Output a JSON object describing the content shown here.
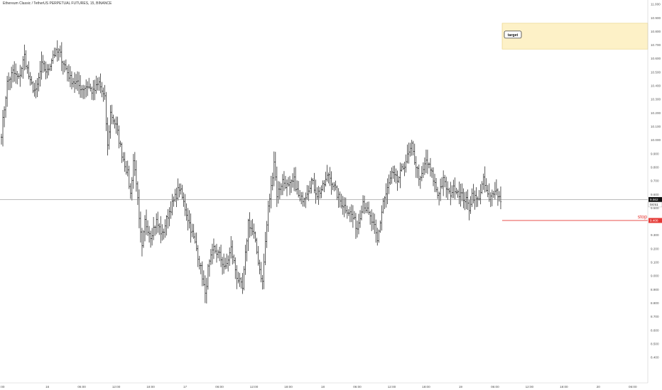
{
  "header": {
    "title": "Ethereum Classic / TetherUS PERPETUAL FUTURES, 15, BINANCE"
  },
  "colors": {
    "bars": "#111111",
    "stop_line": "#e53935",
    "target_fill": "#fdf1c7",
    "target_border": "#e8cf7a",
    "price_line": "#777777",
    "axis_text": "#555555",
    "axis_border": "#cccccc"
  },
  "chart_data": {
    "type": "ohlc",
    "y_axis": {
      "range": [
        8.35,
        11.02
      ],
      "ticks": [
        "11.000",
        "10.900",
        "10.800",
        "10.700",
        "10.600",
        "10.500",
        "10.400",
        "10.300",
        "10.200",
        "10.100",
        "10.000",
        "9.900",
        "9.800",
        "9.700",
        "9.600",
        "9.500",
        "9.400",
        "9.300",
        "9.200",
        "9.100",
        "9.000",
        "8.900",
        "8.800",
        "8.700",
        "8.600",
        "8.500",
        "8.400"
      ]
    },
    "x_axis": {
      "ticks": [
        {
          "label": "0:00",
          "bar": 0
        },
        {
          "label": "16",
          "bar": 32
        },
        {
          "label": "06:00",
          "bar": 56
        },
        {
          "label": "12:00",
          "bar": 80
        },
        {
          "label": "18:00",
          "bar": 104
        },
        {
          "label": "17",
          "bar": 128
        },
        {
          "label": "06:00",
          "bar": 152
        },
        {
          "label": "12:00",
          "bar": 176
        },
        {
          "label": "18:00",
          "bar": 200
        },
        {
          "label": "18",
          "bar": 224
        },
        {
          "label": "06:00",
          "bar": 248
        },
        {
          "label": "12:00",
          "bar": 272
        },
        {
          "label": "18:00",
          "bar": 296
        },
        {
          "label": "19",
          "bar": 320
        },
        {
          "label": "06:00",
          "bar": 344
        },
        {
          "label": "12:00",
          "bar": 368
        },
        {
          "label": "18:00",
          "bar": 392
        },
        {
          "label": "20",
          "bar": 416
        },
        {
          "label": "06:00",
          "bar": 440
        },
        {
          "label": "12:00",
          "bar": 464
        }
      ]
    },
    "anchors": [
      [
        0,
        10.05
      ],
      [
        4,
        10.42
      ],
      [
        8,
        10.5
      ],
      [
        12,
        10.45
      ],
      [
        16,
        10.62
      ],
      [
        20,
        10.42
      ],
      [
        24,
        10.35
      ],
      [
        28,
        10.55
      ],
      [
        32,
        10.5
      ],
      [
        36,
        10.63
      ],
      [
        40,
        10.65
      ],
      [
        44,
        10.55
      ],
      [
        48,
        10.45
      ],
      [
        52,
        10.42
      ],
      [
        56,
        10.38
      ],
      [
        60,
        10.4
      ],
      [
        64,
        10.35
      ],
      [
        68,
        10.42
      ],
      [
        72,
        10.3
      ],
      [
        74,
        9.95
      ],
      [
        76,
        10.2
      ],
      [
        80,
        10.1
      ],
      [
        84,
        9.9
      ],
      [
        88,
        9.75
      ],
      [
        90,
        9.6
      ],
      [
        92,
        9.85
      ],
      [
        94,
        9.7
      ],
      [
        96,
        9.4
      ],
      [
        98,
        9.2
      ],
      [
        100,
        9.4
      ],
      [
        104,
        9.3
      ],
      [
        108,
        9.4
      ],
      [
        112,
        9.3
      ],
      [
        116,
        9.45
      ],
      [
        120,
        9.55
      ],
      [
        124,
        9.65
      ],
      [
        128,
        9.5
      ],
      [
        132,
        9.35
      ],
      [
        136,
        9.2
      ],
      [
        140,
        9.0
      ],
      [
        142,
        8.85
      ],
      [
        144,
        9.05
      ],
      [
        148,
        9.2
      ],
      [
        152,
        9.15
      ],
      [
        156,
        9.05
      ],
      [
        160,
        9.2
      ],
      [
        164,
        9.0
      ],
      [
        168,
        8.9
      ],
      [
        170,
        9.15
      ],
      [
        172,
        9.4
      ],
      [
        176,
        9.3
      ],
      [
        180,
        9.05
      ],
      [
        182,
        8.95
      ],
      [
        184,
        9.25
      ],
      [
        186,
        9.5
      ],
      [
        188,
        9.65
      ],
      [
        190,
        9.85
      ],
      [
        192,
        9.6
      ],
      [
        196,
        9.7
      ],
      [
        200,
        9.65
      ],
      [
        204,
        9.7
      ],
      [
        208,
        9.55
      ],
      [
        212,
        9.6
      ],
      [
        216,
        9.7
      ],
      [
        220,
        9.6
      ],
      [
        224,
        9.65
      ],
      [
        228,
        9.75
      ],
      [
        232,
        9.65
      ],
      [
        236,
        9.55
      ],
      [
        240,
        9.5
      ],
      [
        244,
        9.45
      ],
      [
        248,
        9.35
      ],
      [
        252,
        9.55
      ],
      [
        256,
        9.45
      ],
      [
        260,
        9.35
      ],
      [
        262,
        9.25
      ],
      [
        264,
        9.4
      ],
      [
        266,
        9.55
      ],
      [
        268,
        9.6
      ],
      [
        272,
        9.75
      ],
      [
        276,
        9.7
      ],
      [
        280,
        9.8
      ],
      [
        284,
        9.9
      ],
      [
        286,
        9.95
      ],
      [
        288,
        9.85
      ],
      [
        292,
        9.7
      ],
      [
        296,
        9.85
      ],
      [
        300,
        9.75
      ],
      [
        304,
        9.6
      ],
      [
        308,
        9.7
      ],
      [
        312,
        9.6
      ],
      [
        316,
        9.65
      ],
      [
        320,
        9.6
      ],
      [
        324,
        9.55
      ],
      [
        326,
        9.5
      ],
      [
        328,
        9.6
      ],
      [
        332,
        9.55
      ],
      [
        336,
        9.7
      ],
      [
        340,
        9.55
      ],
      [
        344,
        9.65
      ],
      [
        346,
        9.6
      ],
      [
        348,
        9.56
      ]
    ],
    "current_price": {
      "label": "9.562",
      "value": 9.562
    },
    "countdown": "04:51",
    "stop": {
      "label": "stop",
      "price_label": "9.408",
      "value": 9.408
    },
    "target": {
      "label": "target",
      "low": 10.67,
      "high": 10.86
    }
  }
}
